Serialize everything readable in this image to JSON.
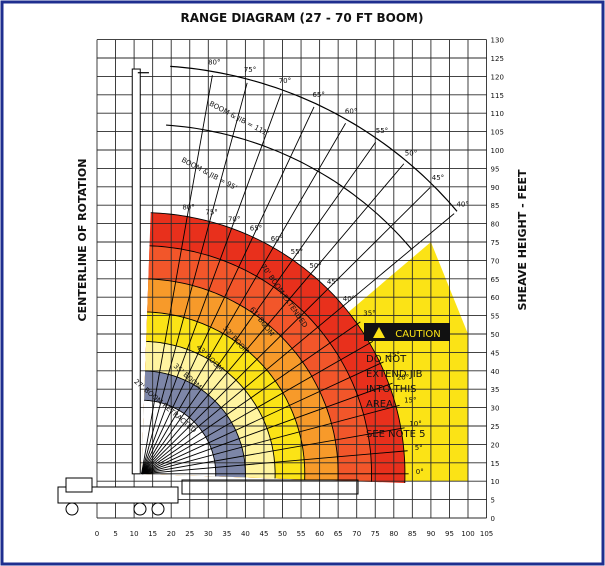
{
  "title": "RANGE DIAGRAM (27 - 70 FT BOOM)",
  "left_label": "CENTERLINE OF ROTATION",
  "right_label": "SHEAVE HEIGHT - FEET",
  "x_ticks": [
    "0",
    "5",
    "10",
    "15",
    "20",
    "25",
    "30",
    "35",
    "40",
    "45",
    "50",
    "55",
    "60",
    "65",
    "70",
    "75",
    "80",
    "85",
    "90",
    "95",
    "100",
    "105"
  ],
  "y_ticks": [
    "0",
    "5",
    "10",
    "15",
    "20",
    "25",
    "30",
    "35",
    "40",
    "45",
    "50",
    "55",
    "60",
    "65",
    "70",
    "75",
    "80",
    "85",
    "90",
    "95",
    "100",
    "105",
    "110",
    "115",
    "120",
    "125",
    "130"
  ],
  "outer_angles": [
    "80°",
    "75°",
    "70°",
    "65°",
    "60°",
    "55°",
    "50°",
    "45°",
    "40°"
  ],
  "inner_angles": [
    "80°",
    "75°",
    "70°",
    "65°",
    "60°",
    "55°",
    "50°",
    "45°",
    "40°"
  ],
  "low_angles": [
    "35°",
    "30°",
    "25°",
    "20°",
    "15°",
    "10°",
    "5°",
    "0°"
  ],
  "boom_labels": {
    "jib111": "BOOM & JIB = 111'",
    "jib95": "BOOM & JIB = 95'",
    "b70": "70' BOOM EXTENDED",
    "b61": "61' BOOM",
    "b52": "52' BOOM",
    "b43": "43' BOOM",
    "b35": "35' BOOM",
    "b27": "27' BOOM RETRACTED"
  },
  "caution": {
    "heading": "CAUTION",
    "line1": "DO NOT",
    "line2": "EXTEND JIB",
    "line3": "INTO THIS",
    "line4": "AREA",
    "note": "SEE NOTE 5"
  },
  "colors": {
    "frame": "#1f2f8f",
    "grid": "#2a2a2a",
    "red_outer": "#e8301c",
    "red_inner": "#f2562a",
    "orange": "#f79a2a",
    "yellow": "#fbe316",
    "pale_yellow": "#fff4a0",
    "blue_grey": "#7d86a8",
    "caution_yellow": "#fbe316"
  }
}
